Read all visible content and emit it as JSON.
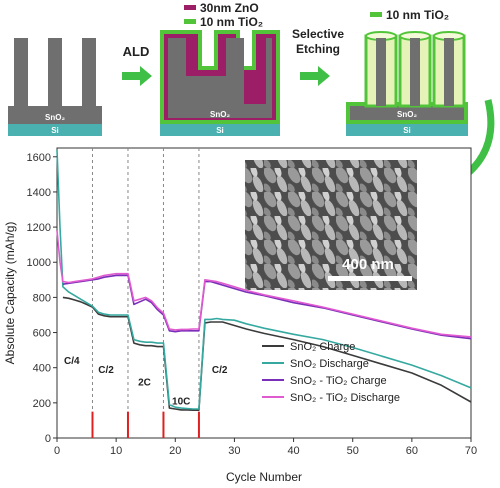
{
  "schematic": {
    "steps": [
      {
        "substrate_label": "Si",
        "wire_label": "SnO₂"
      },
      {
        "substrate_label": "Si",
        "wire_label": "SnO₂"
      },
      {
        "substrate_label": "Si",
        "wire_label": "SnO₂"
      }
    ],
    "arrow_ald": "ALD",
    "arrow_etch_line1": "Selective",
    "arrow_etch_line2": "Etching",
    "legend_zno": "30nm ZnO",
    "legend_tio2_a": "10 nm TiO₂",
    "legend_tio2_b": "10 nm TiO₂",
    "colors": {
      "wire": "#6f6f6f",
      "zno": "#9b1e66",
      "tio2": "#52c43a",
      "tio2_fill": "#e6f3b8",
      "substrate": "#4ab0b0",
      "arrow": "#3fbf45"
    }
  },
  "sem": {
    "scale_label": "400 nm"
  },
  "chart_data": {
    "type": "line",
    "xlabel": "Cycle Number",
    "ylabel": "Absolute Capacity (mAh/g)",
    "xlim": [
      0,
      70
    ],
    "ylim": [
      0,
      1650
    ],
    "xticks": [
      0,
      10,
      20,
      30,
      40,
      50,
      60,
      70
    ],
    "yticks": [
      0,
      200,
      400,
      600,
      800,
      1000,
      1200,
      1400,
      1600
    ],
    "rate_regions": [
      {
        "label": "C/4",
        "x": 2.5,
        "y": 420
      },
      {
        "label": "C/2",
        "x": 8.3,
        "y": 370
      },
      {
        "label": "2C",
        "x": 14.8,
        "y": 300
      },
      {
        "label": "10C",
        "x": 21,
        "y": 190
      },
      {
        "label": "C/2",
        "x": 27.5,
        "y": 370
      }
    ],
    "rate_boundaries": [
      6,
      12,
      18,
      24
    ],
    "legend_position": "bottom-right",
    "series": [
      {
        "name": "SnO₂  Charge",
        "color": "#3b3b3b",
        "x": [
          1,
          2,
          3,
          4,
          5,
          6,
          7,
          8,
          9,
          10,
          11,
          12,
          13,
          14,
          15,
          16,
          17,
          18,
          19,
          20,
          21,
          22,
          23,
          24,
          25,
          26,
          27,
          28,
          30,
          32,
          35,
          40,
          45,
          50,
          55,
          60,
          65,
          70
        ],
        "y": [
          800,
          795,
          785,
          775,
          760,
          745,
          705,
          695,
          690,
          690,
          690,
          690,
          540,
          530,
          525,
          525,
          520,
          520,
          170,
          165,
          160,
          160,
          158,
          158,
          655,
          660,
          660,
          660,
          640,
          620,
          595,
          560,
          520,
          470,
          420,
          370,
          300,
          205
        ]
      },
      {
        "name": "SnO₂  Discharge",
        "color": "#35a9a0",
        "x": [
          0,
          0.5,
          1,
          2,
          3,
          4,
          5,
          6,
          7,
          8,
          9,
          10,
          11,
          12,
          13,
          14,
          15,
          16,
          17,
          18,
          19,
          20,
          21,
          22,
          23,
          24,
          25,
          26,
          27,
          28,
          30,
          32,
          35,
          40,
          45,
          50,
          55,
          60,
          65,
          70
        ],
        "y": [
          1640,
          1200,
          860,
          830,
          810,
          790,
          770,
          750,
          715,
          705,
          700,
          700,
          700,
          700,
          560,
          550,
          545,
          545,
          540,
          540,
          190,
          175,
          170,
          168,
          165,
          165,
          675,
          675,
          680,
          675,
          670,
          650,
          625,
          590,
          560,
          515,
          465,
          415,
          355,
          285
        ]
      },
      {
        "name": "SnO₂ - TiO₂ Charge",
        "color": "#7a2fb8",
        "x": [
          1,
          2,
          3,
          4,
          5,
          6,
          7,
          8,
          9,
          10,
          11,
          12,
          13,
          14,
          15,
          16,
          17,
          18,
          19,
          20,
          21,
          22,
          23,
          24,
          25,
          26,
          27,
          28,
          30,
          32,
          35,
          40,
          45,
          50,
          55,
          60,
          65,
          70
        ],
        "y": [
          875,
          880,
          885,
          890,
          895,
          900,
          905,
          915,
          920,
          925,
          925,
          925,
          760,
          775,
          790,
          770,
          730,
          700,
          610,
          605,
          610,
          610,
          610,
          610,
          890,
          890,
          880,
          870,
          850,
          830,
          810,
          770,
          740,
          700,
          660,
          620,
          585,
          565
        ]
      },
      {
        "name": "SnO₂ - TiO₂ Discharge",
        "color": "#e05ad0",
        "x": [
          0,
          0.5,
          1,
          2,
          3,
          4,
          5,
          6,
          7,
          8,
          9,
          10,
          11,
          12,
          13,
          14,
          15,
          16,
          17,
          18,
          19,
          20,
          21,
          22,
          23,
          24,
          25,
          26,
          27,
          28,
          30,
          32,
          35,
          40,
          45,
          50,
          55,
          60,
          65,
          70
        ],
        "y": [
          1180,
          1000,
          890,
          885,
          890,
          895,
          900,
          905,
          915,
          925,
          930,
          935,
          935,
          935,
          780,
          790,
          800,
          780,
          740,
          710,
          620,
          615,
          618,
          618,
          620,
          620,
          900,
          895,
          890,
          880,
          860,
          840,
          815,
          780,
          745,
          705,
          665,
          625,
          590,
          575
        ]
      }
    ]
  }
}
